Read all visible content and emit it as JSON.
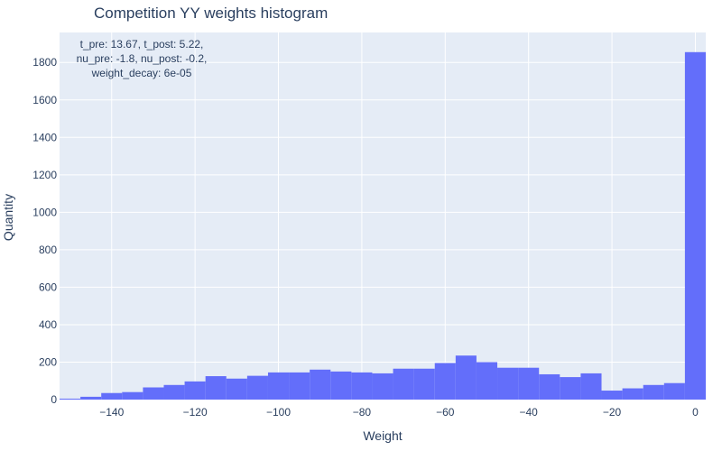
{
  "chart_data": {
    "type": "bar",
    "title": "Competition YY weights histogram",
    "xlabel": "Weight",
    "ylabel": "Quantity",
    "annotation": "t_pre: 13.67, t_post: 5.22,\nnu_pre: -1.8, nu_post: -0.2,\nweight_decay: 6e-05",
    "bin_width": 5,
    "bin_starts": [
      -152.5,
      -147.5,
      -142.5,
      -137.5,
      -132.5,
      -127.5,
      -122.5,
      -117.5,
      -112.5,
      -107.5,
      -102.5,
      -97.5,
      -92.5,
      -87.5,
      -82.5,
      -77.5,
      -72.5,
      -67.5,
      -62.5,
      -57.5,
      -52.5,
      -47.5,
      -42.5,
      -37.5,
      -32.5,
      -27.5,
      -22.5,
      -17.5,
      -12.5,
      -7.5,
      -2.5
    ],
    "values": [
      5,
      15,
      35,
      40,
      65,
      78,
      97,
      125,
      112,
      127,
      145,
      145,
      160,
      150,
      145,
      140,
      165,
      165,
      195,
      235,
      200,
      170,
      170,
      135,
      120,
      140,
      48,
      60,
      78,
      88,
      1855
    ],
    "xlim": [
      -152.5,
      2.5
    ],
    "ylim": [
      0,
      1960
    ],
    "x_ticks": [
      -140,
      -120,
      -100,
      -80,
      -60,
      -40,
      -20,
      0
    ],
    "x_tick_labels": [
      "−140",
      "−120",
      "−100",
      "−80",
      "−60",
      "−40",
      "−20",
      "0"
    ],
    "y_ticks": [
      0,
      200,
      400,
      600,
      800,
      1000,
      1200,
      1400,
      1600,
      1800
    ],
    "y_tick_labels": [
      "0",
      "200",
      "400",
      "600",
      "800",
      "1000",
      "1200",
      "1400",
      "1600",
      "1800"
    ],
    "grid": true,
    "colors": {
      "bar": "#636efa",
      "plot_bg": "#e5ecf6",
      "grid": "#ffffff",
      "text": "#2a3f5f"
    }
  }
}
